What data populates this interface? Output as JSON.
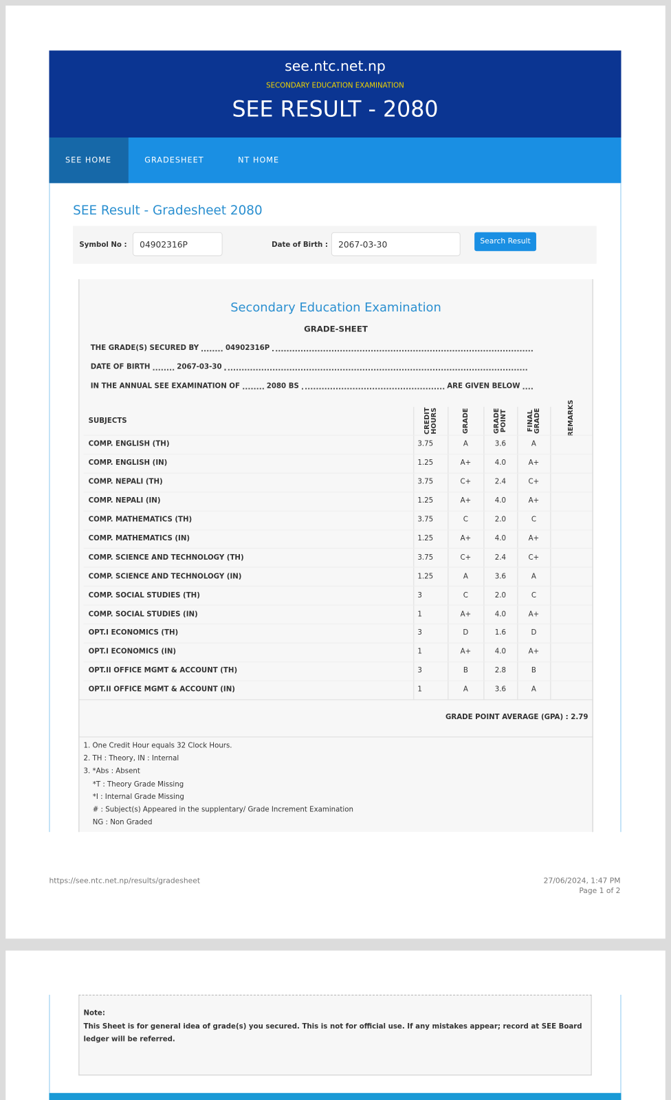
{
  "header": {
    "site": "see.ntc.net.np",
    "subtitle": "SECONDARY EDUCATION EXAMINATION",
    "title": "SEE RESULT - 2080"
  },
  "nav": [
    "SEE HOME",
    "GRADESHEET",
    "NT HOME"
  ],
  "form": {
    "heading": "SEE Result - Gradesheet 2080",
    "symbol_label": "Symbol No :",
    "symbol_value": "04902316P",
    "dob_label": "Date of Birth :",
    "dob_value": "2067-03-30",
    "button": "Search Result"
  },
  "sheet": {
    "title": "Secondary Education Examination",
    "subtitle": "GRADE-SHEET",
    "lines": [
      {
        "label": "THE GRADE(S) SECURED BY",
        "value": "04902316P"
      },
      {
        "label": "DATE OF BIRTH",
        "value": "2067-03-30"
      },
      {
        "label": "IN THE ANNUAL SEE EXAMINATION OF",
        "value": "2080 BS",
        "end": "ARE GIVEN BELOW"
      }
    ],
    "table": {
      "columns": [
        "SUBJECTS",
        "CREDIT HOURS",
        "GRADE",
        "GRADE POINT",
        "FINAL GRADE",
        "REMARKS"
      ],
      "rows": [
        [
          "COMP. ENGLISH (TH)",
          "3.75",
          "A",
          "3.6",
          "A"
        ],
        [
          "COMP. ENGLISH (IN)",
          "1.25",
          "A+",
          "4.0",
          "A+"
        ],
        [
          "COMP. NEPALI (TH)",
          "3.75",
          "C+",
          "2.4",
          "C+"
        ],
        [
          "COMP. NEPALI (IN)",
          "1.25",
          "A+",
          "4.0",
          "A+"
        ],
        [
          "COMP. MATHEMATICS (TH)",
          "3.75",
          "C",
          "2.0",
          "C"
        ],
        [
          "COMP. MATHEMATICS (IN)",
          "1.25",
          "A+",
          "4.0",
          "A+"
        ],
        [
          "COMP. SCIENCE AND TECHNOLOGY (TH)",
          "3.75",
          "C+",
          "2.4",
          "C+"
        ],
        [
          "COMP. SCIENCE AND TECHNOLOGY (IN)",
          "1.25",
          "A",
          "3.6",
          "A"
        ],
        [
          "COMP. SOCIAL STUDIES (TH)",
          "3",
          "C",
          "2.0",
          "C"
        ],
        [
          "COMP. SOCIAL STUDIES (IN)",
          "1",
          "A+",
          "4.0",
          "A+"
        ],
        [
          "OPT.I ECONOMICS (TH)",
          "3",
          "D",
          "1.6",
          "D"
        ],
        [
          "OPT.I ECONOMICS (IN)",
          "1",
          "A+",
          "4.0",
          "A+"
        ],
        [
          "OPT.II OFFICE MGMT & ACCOUNT (TH)",
          "3",
          "B",
          "2.8",
          "B"
        ],
        [
          "OPT.II OFFICE MGMT & ACCOUNT (IN)",
          "1",
          "A",
          "3.6",
          "A"
        ]
      ]
    },
    "gpa": {
      "label": "GRADE POINT AVERAGE (GPA) :",
      "value": "2.79"
    },
    "notes": [
      "1. One Credit Hour equals 32 Clock Hours.",
      "2. TH : Theory, IN : Internal",
      "3. *Abs : Absent",
      "*T : Theory Grade Missing",
      "*I : Internal Grade Missing",
      "# : Subject(s) Appeared in the supplentary/ Grade Increment Examination",
      "NG : Non Graded"
    ]
  },
  "footer": {
    "url": "https://see.ntc.net.np/results/gradesheet",
    "datetime": "27/06/2024, 1:47 PM",
    "page": "Page 1 of 2"
  },
  "note": {
    "label": "Note:",
    "text": "This Sheet is for general idea of grade(s) you secured. This is not for official use. If any mistakes appear; record at SEE Board ledger will be referred."
  }
}
